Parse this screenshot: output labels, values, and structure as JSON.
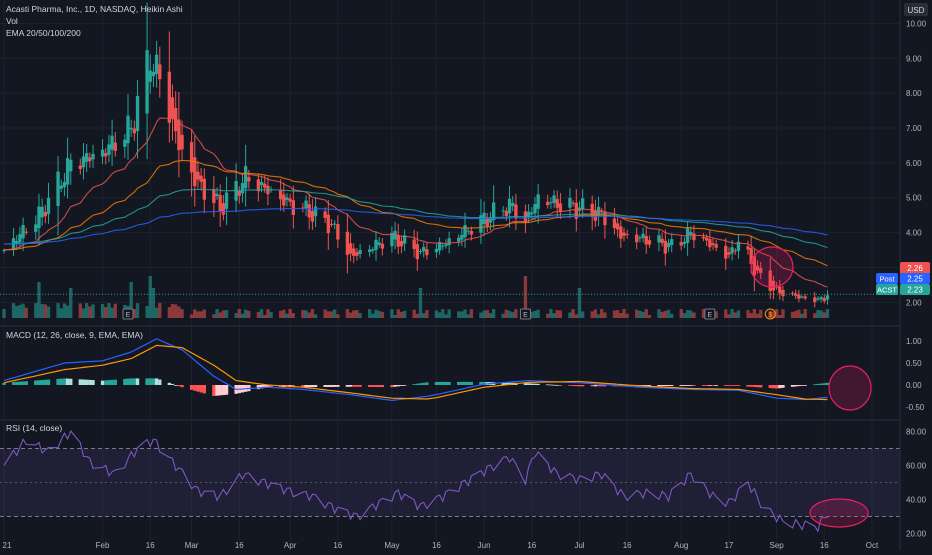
{
  "header": {
    "symbol_line": "Acasti Pharma, Inc., 1D, NASDAQ, Heikin Ashi",
    "vol_label": "Vol",
    "ema_label": "EMA 20/50/100/200"
  },
  "currency": "USD",
  "price_badges": {
    "ema_value": "2.26",
    "post_label": "Post",
    "post_value": "2.25",
    "ticker_label": "ACST",
    "ticker_value": "2.23"
  },
  "event_markers": [
    {
      "label": "E",
      "date": "2021-02-09"
    },
    {
      "label": "E",
      "date": "2021-06-14"
    },
    {
      "label": "E",
      "date": "2021-08-11"
    },
    {
      "label": "$",
      "date": "2021-08-30"
    }
  ],
  "indicators": {
    "macd_label": "MACD (12, 26, close, 9, EMA, EMA)",
    "rsi_label": "RSI (14, close)"
  },
  "colors": {
    "background": "#131722",
    "up": "#26a69a",
    "down": "#ef5350",
    "ema20": "#ef5350",
    "ema50": "#f57c00",
    "ema100": "#26a69a",
    "ema200": "#2962ff",
    "macd": "#2962ff",
    "signal": "#ff9800",
    "rsi": "#7e57c2",
    "annotation": "#e91e63"
  },
  "chart_data": [
    {
      "type": "candlestick",
      "title": "Acasti Pharma, Inc., 1D, NASDAQ, Heikin Ashi",
      "x_tick_labels": [
        "21",
        "Feb",
        "16",
        "Mar",
        "16",
        "Apr",
        "16",
        "May",
        "16",
        "Jun",
        "16",
        "Jul",
        "16",
        "Aug",
        "17",
        "Sep",
        "16",
        "Oct"
      ],
      "x_tick_dates": [
        "2021-01-01",
        "2021-02-01",
        "2021-02-16",
        "2021-03-01",
        "2021-03-16",
        "2021-04-01",
        "2021-04-16",
        "2021-05-03",
        "2021-05-17",
        "2021-06-01",
        "2021-06-16",
        "2021-07-01",
        "2021-07-16",
        "2021-08-02",
        "2021-08-17",
        "2021-09-01",
        "2021-09-16",
        "2021-10-01"
      ],
      "y_tick_labels": [
        "10.00",
        "9.00",
        "8.00",
        "7.00",
        "6.00",
        "5.00",
        "4.00",
        "3.00",
        "2.00"
      ],
      "ylim": [
        1.55,
        10.5
      ],
      "anchors": [
        [
          "2021-01-01",
          3.5
        ],
        [
          "2021-01-12",
          4.5
        ],
        [
          "2021-01-22",
          6.0
        ],
        [
          "2021-02-01",
          6.3
        ],
        [
          "2021-02-10",
          7.0
        ],
        [
          "2021-02-16",
          9.1
        ],
        [
          "2021-02-19",
          8.4
        ],
        [
          "2021-02-25",
          6.5
        ],
        [
          "2021-03-02",
          5.5
        ],
        [
          "2021-03-10",
          4.7
        ],
        [
          "2021-03-18",
          5.6
        ],
        [
          "2021-03-25",
          5.2
        ],
        [
          "2021-04-01",
          4.8
        ],
        [
          "2021-04-07",
          4.6
        ],
        [
          "2021-04-14",
          4.2
        ],
        [
          "2021-04-20",
          3.3
        ],
        [
          "2021-04-27",
          3.6
        ],
        [
          "2021-05-03",
          3.9
        ],
        [
          "2021-05-12",
          3.4
        ],
        [
          "2021-05-20",
          3.7
        ],
        [
          "2021-05-27",
          4.1
        ],
        [
          "2021-06-03",
          4.5
        ],
        [
          "2021-06-09",
          4.8
        ],
        [
          "2021-06-14",
          4.3
        ],
        [
          "2021-06-18",
          5.0
        ],
        [
          "2021-06-25",
          4.8
        ],
        [
          "2021-07-01",
          4.7
        ],
        [
          "2021-07-08",
          4.5
        ],
        [
          "2021-07-14",
          3.9
        ],
        [
          "2021-07-22",
          3.8
        ],
        [
          "2021-07-30",
          3.6
        ],
        [
          "2021-08-05",
          4.0
        ],
        [
          "2021-08-12",
          3.6
        ],
        [
          "2021-08-17",
          3.3
        ],
        [
          "2021-08-20",
          3.8
        ],
        [
          "2021-08-26",
          2.8
        ],
        [
          "2021-09-01",
          2.3
        ],
        [
          "2021-09-08",
          2.15
        ],
        [
          "2021-09-14",
          2.05
        ],
        [
          "2021-09-17",
          2.2
        ]
      ],
      "ema_labels": [
        "EMA 20",
        "EMA 50",
        "EMA 100",
        "EMA 200"
      ],
      "last_values": {
        "EMA 20": 2.26,
        "Post": 2.25,
        "ACST": 2.23
      }
    },
    {
      "type": "line",
      "title": "MACD (12, 26, close, 9, EMA, EMA)",
      "y_tick_labels": [
        "1.00",
        "0.50",
        "0.00",
        "-0.50"
      ],
      "ylim": [
        -0.75,
        1.25
      ],
      "macd_anchors": [
        [
          "2021-01-01",
          0.1
        ],
        [
          "2021-01-20",
          0.5
        ],
        [
          "2021-02-01",
          0.55
        ],
        [
          "2021-02-10",
          0.75
        ],
        [
          "2021-02-18",
          1.05
        ],
        [
          "2021-02-26",
          0.8
        ],
        [
          "2021-03-08",
          0.2
        ],
        [
          "2021-03-15",
          -0.1
        ],
        [
          "2021-03-25",
          -0.05
        ],
        [
          "2021-04-05",
          -0.1
        ],
        [
          "2021-04-20",
          -0.22
        ],
        [
          "2021-05-03",
          -0.35
        ],
        [
          "2021-05-15",
          -0.25
        ],
        [
          "2021-06-01",
          0.02
        ],
        [
          "2021-06-15",
          0.1
        ],
        [
          "2021-07-01",
          0.05
        ],
        [
          "2021-07-20",
          -0.05
        ],
        [
          "2021-08-05",
          -0.1
        ],
        [
          "2021-08-20",
          -0.12
        ],
        [
          "2021-09-01",
          -0.3
        ],
        [
          "2021-09-10",
          -0.33
        ],
        [
          "2021-09-17",
          -0.28
        ]
      ],
      "signal_anchors": [
        [
          "2021-01-01",
          0.05
        ],
        [
          "2021-01-20",
          0.35
        ],
        [
          "2021-02-01",
          0.45
        ],
        [
          "2021-02-10",
          0.6
        ],
        [
          "2021-02-18",
          0.9
        ],
        [
          "2021-02-26",
          0.85
        ],
        [
          "2021-03-08",
          0.45
        ],
        [
          "2021-03-15",
          0.1
        ],
        [
          "2021-03-25",
          0.0
        ],
        [
          "2021-04-05",
          -0.05
        ],
        [
          "2021-04-20",
          -0.18
        ],
        [
          "2021-05-03",
          -0.3
        ],
        [
          "2021-05-15",
          -0.32
        ],
        [
          "2021-06-01",
          -0.05
        ],
        [
          "2021-06-15",
          0.06
        ],
        [
          "2021-07-01",
          0.08
        ],
        [
          "2021-07-20",
          -0.02
        ],
        [
          "2021-08-05",
          -0.08
        ],
        [
          "2021-08-20",
          -0.1
        ],
        [
          "2021-09-01",
          -0.22
        ],
        [
          "2021-09-10",
          -0.32
        ],
        [
          "2021-09-17",
          -0.33
        ]
      ]
    },
    {
      "type": "line",
      "title": "RSI (14, close)",
      "y_tick_labels": [
        "80.00",
        "60.00",
        "40.00",
        "20.00"
      ],
      "ylim": [
        15,
        85
      ],
      "band": [
        30,
        70
      ],
      "anchors": [
        [
          "2021-01-01",
          60
        ],
        [
          "2021-01-08",
          75
        ],
        [
          "2021-01-15",
          68
        ],
        [
          "2021-01-22",
          80
        ],
        [
          "2021-01-28",
          62
        ],
        [
          "2021-02-05",
          55
        ],
        [
          "2021-02-12",
          70
        ],
        [
          "2021-02-17",
          75
        ],
        [
          "2021-02-24",
          60
        ],
        [
          "2021-03-03",
          45
        ],
        [
          "2021-03-10",
          42
        ],
        [
          "2021-03-17",
          55
        ],
        [
          "2021-03-24",
          50
        ],
        [
          "2021-04-01",
          45
        ],
        [
          "2021-04-08",
          42
        ],
        [
          "2021-04-15",
          35
        ],
        [
          "2021-04-22",
          30
        ],
        [
          "2021-04-29",
          38
        ],
        [
          "2021-05-05",
          44
        ],
        [
          "2021-05-12",
          36
        ],
        [
          "2021-05-19",
          42
        ],
        [
          "2021-05-26",
          50
        ],
        [
          "2021-06-02",
          58
        ],
        [
          "2021-06-09",
          65
        ],
        [
          "2021-06-14",
          52
        ],
        [
          "2021-06-17",
          68
        ],
        [
          "2021-06-24",
          55
        ],
        [
          "2021-07-01",
          52
        ],
        [
          "2021-07-08",
          55
        ],
        [
          "2021-07-15",
          42
        ],
        [
          "2021-07-22",
          44
        ],
        [
          "2021-07-29",
          42
        ],
        [
          "2021-08-05",
          55
        ],
        [
          "2021-08-12",
          42
        ],
        [
          "2021-08-17",
          38
        ],
        [
          "2021-08-23",
          50
        ],
        [
          "2021-08-28",
          35
        ],
        [
          "2021-09-03",
          27
        ],
        [
          "2021-09-09",
          25
        ],
        [
          "2021-09-14",
          24
        ],
        [
          "2021-09-17",
          32
        ]
      ]
    }
  ]
}
